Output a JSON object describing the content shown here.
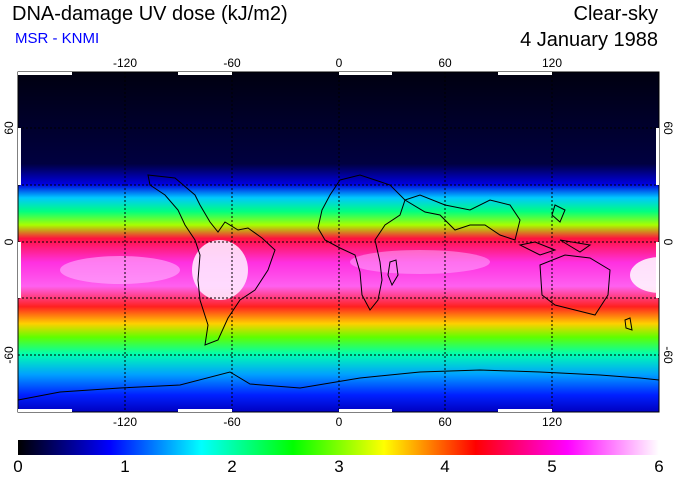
{
  "header": {
    "title": "DNA-damage UV dose (kJ/m2)",
    "source": "MSR - KNMI",
    "condition": "Clear-sky",
    "date": "4 January 1988"
  },
  "map": {
    "projection": "equirectangular",
    "lon_ticks": [
      -120,
      -60,
      0,
      60,
      120
    ],
    "lat_ticks": [
      60,
      0,
      -60
    ],
    "lon_range": [
      -180,
      180
    ],
    "lat_range": [
      -90,
      90
    ]
  },
  "colorbar": {
    "min": 0,
    "max": 6,
    "tick_labels": [
      "0",
      "1",
      "2",
      "3",
      "4",
      "5",
      "6"
    ],
    "colors": [
      "#000000",
      "#0000ff",
      "#00ffff",
      "#00ff00",
      "#ffff00",
      "#ff0000",
      "#ff00ff",
      "#ffffff"
    ]
  }
}
